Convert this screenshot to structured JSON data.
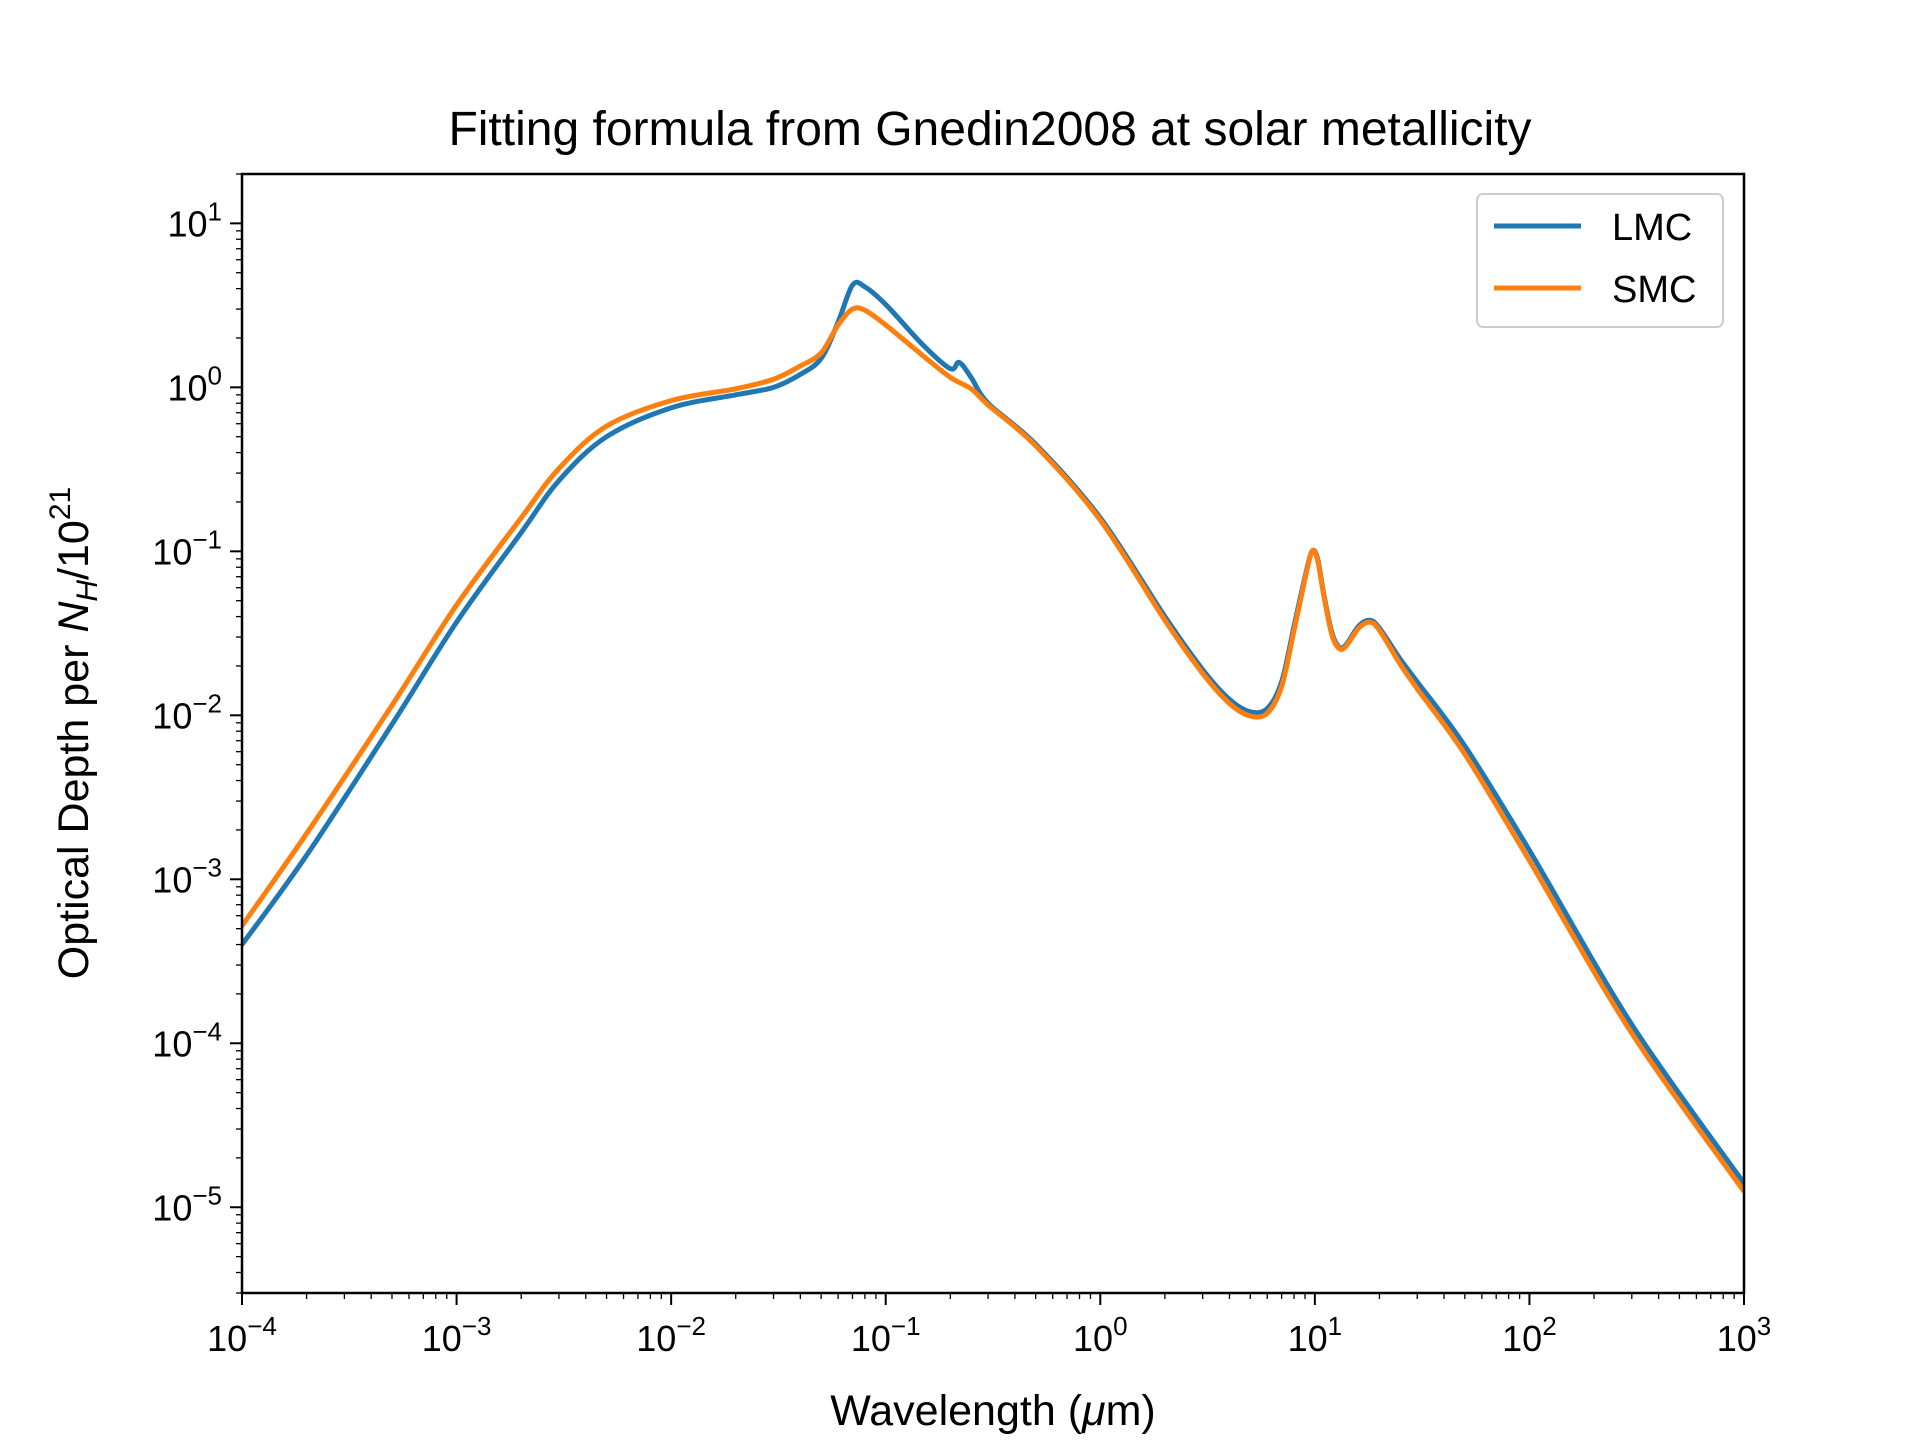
{
  "chart_data": {
    "type": "line",
    "title": "Fitting formula from Gnedin2008 at solar metallicity",
    "xlabel": {
      "prefix": "Wavelength (",
      "symbol": "μ",
      "suffix": "m)"
    },
    "ylabel": {
      "prefix": "Optical Depth per ",
      "var": "N",
      "sub": "H",
      "mid": "/10",
      "sup": "21"
    },
    "xscale": "log",
    "yscale": "log",
    "xlim": [
      0.0001,
      1000
    ],
    "ylim": [
      3e-06,
      20
    ],
    "x_ticks": [
      {
        "exp": -4,
        "base": "10",
        "sup": "−4"
      },
      {
        "exp": -3,
        "base": "10",
        "sup": "−3"
      },
      {
        "exp": -2,
        "base": "10",
        "sup": "−2"
      },
      {
        "exp": -1,
        "base": "10",
        "sup": "−1"
      },
      {
        "exp": 0,
        "base": "10",
        "sup": "0"
      },
      {
        "exp": 1,
        "base": "10",
        "sup": "1"
      },
      {
        "exp": 2,
        "base": "10",
        "sup": "2"
      },
      {
        "exp": 3,
        "base": "10",
        "sup": "3"
      }
    ],
    "y_ticks": [
      {
        "exp": -5,
        "base": "10",
        "sup": "−5"
      },
      {
        "exp": -4,
        "base": "10",
        "sup": "−4"
      },
      {
        "exp": -3,
        "base": "10",
        "sup": "−3"
      },
      {
        "exp": -2,
        "base": "10",
        "sup": "−2"
      },
      {
        "exp": -1,
        "base": "10",
        "sup": "−1"
      },
      {
        "exp": 0,
        "base": "10",
        "sup": "0"
      },
      {
        "exp": 1,
        "base": "10",
        "sup": "1"
      }
    ],
    "grid": false,
    "legend_position": "top-right",
    "series": [
      {
        "name": "LMC",
        "color": "#1f77b4",
        "points": [
          [
            0.0001,
            0.0004
          ],
          [
            0.0002,
            0.0014
          ],
          [
            0.0005,
            0.0088
          ],
          [
            0.001,
            0.037
          ],
          [
            0.002,
            0.13
          ],
          [
            0.003,
            0.27
          ],
          [
            0.005,
            0.5
          ],
          [
            0.01,
            0.75
          ],
          [
            0.02,
            0.9
          ],
          [
            0.03,
            1.0
          ],
          [
            0.04,
            1.2
          ],
          [
            0.05,
            1.5
          ],
          [
            0.06,
            2.5
          ],
          [
            0.07,
            4.2
          ],
          [
            0.08,
            4.1
          ],
          [
            0.1,
            3.2
          ],
          [
            0.15,
            1.8
          ],
          [
            0.2,
            1.3
          ],
          [
            0.22,
            1.42
          ],
          [
            0.25,
            1.15
          ],
          [
            0.3,
            0.8
          ],
          [
            0.5,
            0.45
          ],
          [
            1.0,
            0.16
          ],
          [
            2.0,
            0.04
          ],
          [
            3.0,
            0.019
          ],
          [
            4.0,
            0.0125
          ],
          [
            5.0,
            0.0105
          ],
          [
            6.0,
            0.011
          ],
          [
            7.0,
            0.016
          ],
          [
            8.0,
            0.035
          ],
          [
            9.0,
            0.07
          ],
          [
            9.7,
            0.1
          ],
          [
            10.3,
            0.09
          ],
          [
            11.0,
            0.055
          ],
          [
            12.0,
            0.032
          ],
          [
            13.0,
            0.026
          ],
          [
            14.0,
            0.027
          ],
          [
            16.0,
            0.035
          ],
          [
            18.0,
            0.038
          ],
          [
            20.0,
            0.034
          ],
          [
            25.0,
            0.022
          ],
          [
            30.0,
            0.016
          ],
          [
            50.0,
            0.0065
          ],
          [
            100.0,
            0.0015
          ],
          [
            300.0,
            0.00013
          ],
          [
            1000.0,
            1.4e-05
          ]
        ]
      },
      {
        "name": "SMC",
        "color": "#ff7f0e",
        "points": [
          [
            0.0001,
            0.00052
          ],
          [
            0.0002,
            0.0019
          ],
          [
            0.0005,
            0.0115
          ],
          [
            0.001,
            0.047
          ],
          [
            0.002,
            0.16
          ],
          [
            0.003,
            0.32
          ],
          [
            0.005,
            0.58
          ],
          [
            0.01,
            0.83
          ],
          [
            0.02,
            0.98
          ],
          [
            0.03,
            1.12
          ],
          [
            0.04,
            1.35
          ],
          [
            0.05,
            1.62
          ],
          [
            0.06,
            2.4
          ],
          [
            0.07,
            3.0
          ],
          [
            0.08,
            2.95
          ],
          [
            0.1,
            2.4
          ],
          [
            0.15,
            1.55
          ],
          [
            0.2,
            1.15
          ],
          [
            0.25,
            0.98
          ],
          [
            0.3,
            0.78
          ],
          [
            0.5,
            0.44
          ],
          [
            1.0,
            0.155
          ],
          [
            2.0,
            0.038
          ],
          [
            3.0,
            0.018
          ],
          [
            4.0,
            0.0118
          ],
          [
            5.0,
            0.0099
          ],
          [
            6.0,
            0.0103
          ],
          [
            7.0,
            0.015
          ],
          [
            8.0,
            0.033
          ],
          [
            9.0,
            0.068
          ],
          [
            9.7,
            0.1
          ],
          [
            10.3,
            0.088
          ],
          [
            11.0,
            0.054
          ],
          [
            12.0,
            0.031
          ],
          [
            13.0,
            0.0255
          ],
          [
            14.0,
            0.0265
          ],
          [
            16.0,
            0.034
          ],
          [
            18.0,
            0.037
          ],
          [
            20.0,
            0.033
          ],
          [
            25.0,
            0.0205
          ],
          [
            30.0,
            0.0145
          ],
          [
            50.0,
            0.0058
          ],
          [
            100.0,
            0.0013
          ],
          [
            300.0,
            0.000115
          ],
          [
            1000.0,
            1.25e-05
          ]
        ]
      }
    ]
  }
}
